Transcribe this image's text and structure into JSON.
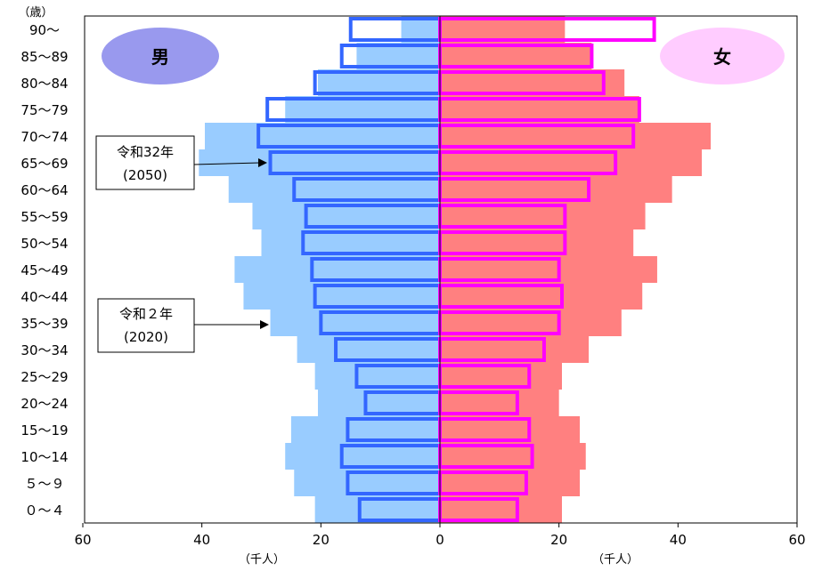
{
  "chart_data": {
    "type": "bar",
    "title": "",
    "y_axis_unit": "（歳）",
    "x_axis_unit_left": "（千人）",
    "x_axis_unit_right": "（千人）",
    "xlim": [
      -60,
      60
    ],
    "x_ticks": [
      "60",
      "40",
      "20",
      "0",
      "20",
      "40",
      "60"
    ],
    "age_groups": [
      "０～４",
      "５～９",
      "10～14",
      "15～19",
      "20～24",
      "25～29",
      "30～34",
      "35～39",
      "40～44",
      "45～49",
      "50～54",
      "55～59",
      "60～64",
      "65～69",
      "70～74",
      "75～79",
      "80～84",
      "85～89",
      "90～"
    ],
    "male_label": "男",
    "female_label": "女",
    "series": [
      {
        "name": "令和2年（2020）",
        "label_line1": "令和２年",
        "label_line2": "(2020)",
        "male_color": "#99ccff",
        "female_color": "#ff8080",
        "male": [
          21,
          24.5,
          26,
          25,
          20.5,
          21,
          24,
          28.5,
          33,
          34.5,
          30,
          31.5,
          35.5,
          40.5,
          39.5,
          26,
          20.5,
          14,
          6.5
        ],
        "female": [
          20.5,
          23.5,
          24.5,
          23.5,
          20,
          20.5,
          25,
          30.5,
          34,
          36.5,
          32.5,
          34.5,
          39,
          44,
          45.5,
          33.5,
          31,
          25.5,
          21
        ]
      },
      {
        "name": "令和32年（2050）",
        "label_line1": "令和32年",
        "label_line2": "(2050)",
        "male_color": "#3366ff",
        "female_color": "#ff00ff",
        "male": [
          13.5,
          15.5,
          16.5,
          15.5,
          12.5,
          14,
          17.5,
          20,
          21,
          21.5,
          23,
          22.5,
          24.5,
          28.5,
          30.5,
          29,
          21,
          16.5,
          15
        ],
        "female": [
          13,
          14.5,
          15.5,
          15,
          13,
          15,
          17.5,
          20,
          20.5,
          20,
          21,
          21,
          25,
          29.5,
          32.5,
          33.5,
          27.5,
          25.5,
          36
        ]
      }
    ]
  }
}
